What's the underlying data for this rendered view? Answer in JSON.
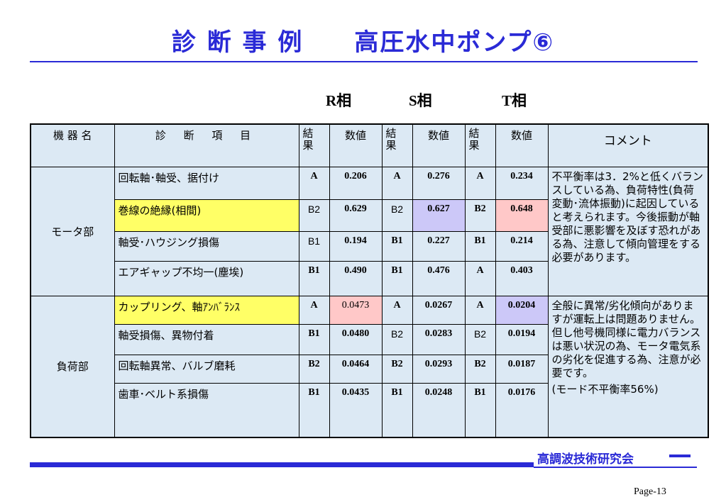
{
  "title": "診 断 事 例　　高圧水中ポンプ⑥",
  "phases": {
    "r": "R相",
    "s": "S相",
    "t": "T相"
  },
  "table": {
    "headers": {
      "device": "機 器 名",
      "item": "診 断 項 目",
      "result": "結\n果",
      "value": "数値",
      "comment": "コメント"
    },
    "groups": [
      {
        "name": "モータ部",
        "comment": "不平衡率は3．2%と低くバランスしている為、負荷特性(負荷変動･流体振動)に起因していると考えられます。今後振動が軸受部に悪影響を及ぼす恐れがある為、注意して傾向管理をする必要があります。",
        "rows": [
          {
            "item": "回転軸･軸受、据付け",
            "r_res": "A",
            "r_val": "0.206",
            "s_res": "A",
            "s_val": "0.276",
            "t_res": "A",
            "t_val": "0.234"
          },
          {
            "item": "巻線の絶縁(相間)",
            "r_res": "B2",
            "r_val": "0.629",
            "s_res": "B2",
            "s_val": "0.627",
            "t_res": "B2",
            "t_val": "0.648"
          },
          {
            "item": "軸受･ハウジング損傷",
            "r_res": "B1",
            "r_val": "0.194",
            "s_res": "B1",
            "s_val": "0.227",
            "t_res": "B1",
            "t_val": "0.214"
          },
          {
            "item": "エアギャップ不均一(塵埃)",
            "r_res": "B1",
            "r_val": "0.490",
            "s_res": "B1",
            "s_val": "0.476",
            "t_res": "A",
            "t_val": "0.403"
          }
        ]
      },
      {
        "name": "負荷部",
        "comment": "全般に異常/劣化傾向がありますが運転上は問題ありません。但し他号機同様に電力バランスは悪い状況の為、モータ電気系の劣化を促進する為、注意が必要です。",
        "comment2": "(モード不平衡率56%)",
        "rows": [
          {
            "item": "カップリング、軸ｱﾝﾊﾞﾗﾝｽ",
            "r_res": "A",
            "r_val": "0.0473",
            "s_res": "A",
            "s_val": "0.0267",
            "t_res": "A",
            "t_val": "0.0204"
          },
          {
            "item": "軸受損傷、異物付着",
            "r_res": "B1",
            "r_val": "0.0480",
            "s_res": "B2",
            "s_val": "0.0283",
            "t_res": "B2",
            "t_val": "0.0194"
          },
          {
            "item": "回転軸異常、バルブ磨耗",
            "r_res": "B2",
            "r_val": "0.0464",
            "s_res": "B2",
            "s_val": "0.0293",
            "t_res": "B2",
            "t_val": "0.0187"
          },
          {
            "item": "歯車･ベルト系損傷",
            "r_res": "B1",
            "r_val": "0.0435",
            "s_res": "B1",
            "s_val": "0.0248",
            "t_res": "B1",
            "t_val": "0.0176"
          }
        ]
      }
    ]
  },
  "footer": {
    "org": "高調波技術研究会",
    "page": "Page-13"
  },
  "colors": {
    "accent": "#2a2ad6",
    "table_bg": "#dce9f4",
    "highlight_yellow": "#ffff66",
    "highlight_pink": "#ffc8c8",
    "highlight_lavender": "#ccc8f8"
  }
}
